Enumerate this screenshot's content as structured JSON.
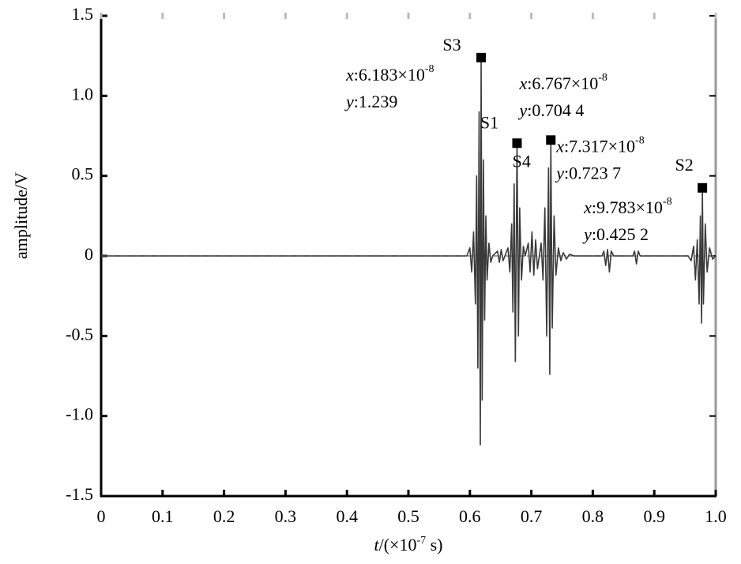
{
  "chart_data": {
    "type": "line",
    "ylabel": "amplitude/V",
    "xlabel": {
      "var": "t",
      "pre": "/(×10",
      "sup": "-7",
      "post": " s)"
    },
    "color": "#3a3a3a",
    "xlim": [
      0,
      1.0
    ],
    "ylim": [
      -1.5,
      1.5
    ],
    "xticks": [
      0,
      0.1,
      0.2,
      0.3,
      0.4,
      0.5,
      0.6,
      0.7,
      0.8,
      0.9,
      {
        "value": 1.0,
        "label": "1.0"
      }
    ],
    "yticks": [
      {
        "value": 1.5,
        "label": "1.5"
      },
      {
        "value": 1.0,
        "label": "1.0"
      },
      0.5,
      0,
      -0.5,
      {
        "value": -1.0,
        "label": "-1.0"
      },
      {
        "value": -1.5,
        "label": "-1.5"
      }
    ],
    "x": [
      0,
      0.59,
      0.595,
      0.6,
      0.603,
      0.606,
      0.609,
      0.611,
      0.613,
      0.615,
      0.617,
      0.6183,
      0.62,
      0.622,
      0.624,
      0.626,
      0.628,
      0.631,
      0.634,
      0.637,
      0.645,
      0.648,
      0.651,
      0.654,
      0.657,
      0.662,
      0.665,
      0.668,
      0.67,
      0.672,
      0.674,
      0.6767,
      0.679,
      0.681,
      0.684,
      0.687,
      0.69,
      0.695,
      0.698,
      0.701,
      0.704,
      0.707,
      0.71,
      0.713,
      0.716,
      0.719,
      0.722,
      0.725,
      0.728,
      0.73,
      0.7317,
      0.734,
      0.737,
      0.74,
      0.744,
      0.748,
      0.752,
      0.757,
      0.762,
      0.77,
      0.815,
      0.818,
      0.821,
      0.824,
      0.827,
      0.83,
      0.834,
      0.865,
      0.868,
      0.871,
      0.874,
      0.877,
      0.955,
      0.96,
      0.964,
      0.967,
      0.97,
      0.973,
      0.975,
      0.977,
      0.9783,
      0.98,
      0.983,
      0.986,
      0.99,
      0.995,
      1.0
    ],
    "values": [
      0,
      0,
      0,
      0.05,
      -0.1,
      0.15,
      -0.3,
      0.5,
      -0.7,
      0.9,
      -1.18,
      1.239,
      -0.9,
      0.6,
      -0.4,
      0.25,
      -0.15,
      0.08,
      -0.04,
      0,
      0.03,
      -0.04,
      0.04,
      -0.03,
      0,
      0.05,
      -0.1,
      0.2,
      -0.35,
      0.45,
      -0.66,
      0.7044,
      -0.5,
      0.3,
      -0.15,
      0.06,
      0,
      0.08,
      -0.1,
      0.15,
      -0.12,
      0.1,
      -0.08,
      0,
      0.08,
      -0.15,
      0.3,
      -0.5,
      0.55,
      -0.74,
      0.7237,
      -0.45,
      0.25,
      -0.12,
      0.05,
      -0.03,
      0.02,
      -0.02,
      0.01,
      0,
      0,
      0.03,
      -0.06,
      0.04,
      -0.1,
      0.03,
      0,
      0,
      0.03,
      -0.05,
      0.03,
      0,
      0,
      -0.03,
      0.06,
      -0.15,
      0.1,
      -0.3,
      0.25,
      -0.42,
      0.4252,
      -0.3,
      0.2,
      -0.1,
      0.05,
      -0.02,
      0
    ],
    "annotations": [
      {
        "label": "S3",
        "x": 0.6183,
        "y": 1.239,
        "x_var": "x",
        "x_text": ":6.183×10",
        "x_exp": "-8",
        "y_var": "y",
        "y_text": ":1.239"
      },
      {
        "label": "S1",
        "x": 0.6767,
        "y": 0.7044,
        "x_var": "x",
        "x_text": ":6.767×10",
        "x_exp": "-8",
        "y_var": "y",
        "y_text": ":0.704 4"
      },
      {
        "label": "S4",
        "x": 0.7317,
        "y": 0.7237,
        "x_var": "x",
        "x_text": ":7.317×10",
        "x_exp": "-8",
        "y_var": "y",
        "y_text": ":0.723 7"
      },
      {
        "label": "S2",
        "x": 0.9783,
        "y": 0.4252,
        "x_var": "x",
        "x_text": ":9.783×10",
        "x_exp": "-8",
        "y_var": "y",
        "y_text": ":0.425 2"
      }
    ]
  }
}
